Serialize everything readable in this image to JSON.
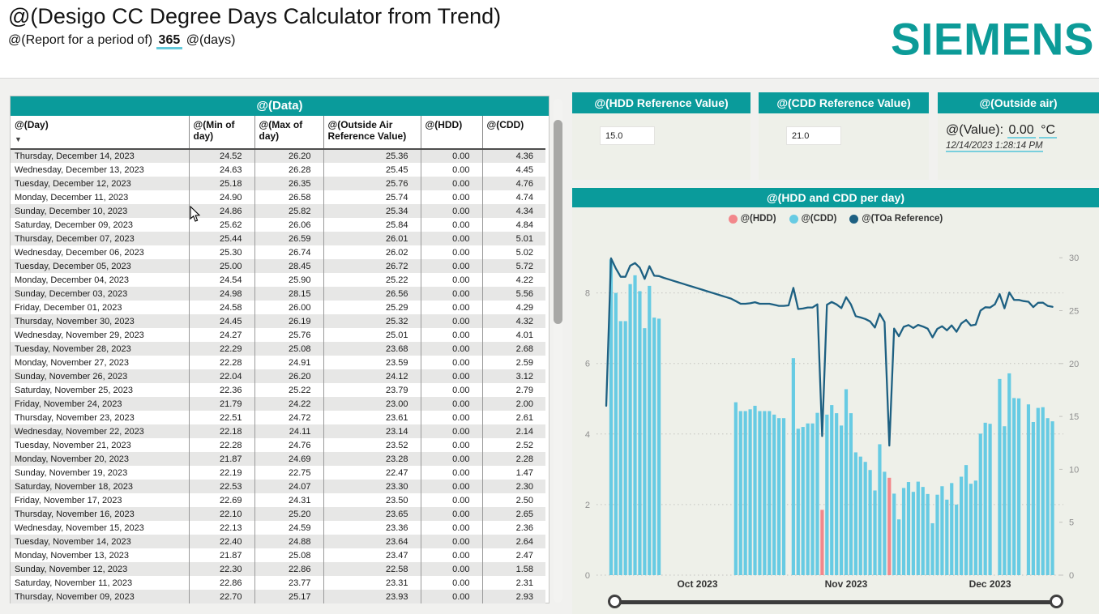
{
  "header": {
    "title": "@(Desigo CC Degree Days Calculator from Trend)",
    "subtitle_prefix": "@(Report for a period of)",
    "period_value": "365",
    "subtitle_suffix": "@(days)",
    "logo_text": "SIEMENS",
    "brand_color": "#0c9b98"
  },
  "table": {
    "title": "@(Data)",
    "sort_icon": "▼",
    "columns": [
      "@(Day)",
      "@(Min of day)",
      "@(Max of day)",
      "@(Outside Air Reference Value)",
      "@(HDD)",
      "@(CDD)"
    ],
    "rows": [
      [
        "Thursday, December 14, 2023",
        "24.52",
        "26.20",
        "25.36",
        "0.00",
        "4.36"
      ],
      [
        "Wednesday, December 13, 2023",
        "24.63",
        "26.28",
        "25.45",
        "0.00",
        "4.45"
      ],
      [
        "Tuesday, December 12, 2023",
        "25.18",
        "26.35",
        "25.76",
        "0.00",
        "4.76"
      ],
      [
        "Monday, December 11, 2023",
        "24.90",
        "26.58",
        "25.74",
        "0.00",
        "4.74"
      ],
      [
        "Sunday, December 10, 2023",
        "24.86",
        "25.82",
        "25.34",
        "0.00",
        "4.34"
      ],
      [
        "Saturday, December 09, 2023",
        "25.62",
        "26.06",
        "25.84",
        "0.00",
        "4.84"
      ],
      [
        "Thursday, December 07, 2023",
        "25.44",
        "26.59",
        "26.01",
        "0.00",
        "5.01"
      ],
      [
        "Wednesday, December 06, 2023",
        "25.30",
        "26.74",
        "26.02",
        "0.00",
        "5.02"
      ],
      [
        "Tuesday, December 05, 2023",
        "25.00",
        "28.45",
        "26.72",
        "0.00",
        "5.72"
      ],
      [
        "Monday, December 04, 2023",
        "24.54",
        "25.90",
        "25.22",
        "0.00",
        "4.22"
      ],
      [
        "Sunday, December 03, 2023",
        "24.98",
        "28.15",
        "26.56",
        "0.00",
        "5.56"
      ],
      [
        "Friday, December 01, 2023",
        "24.58",
        "26.00",
        "25.29",
        "0.00",
        "4.29"
      ],
      [
        "Thursday, November 30, 2023",
        "24.45",
        "26.19",
        "25.32",
        "0.00",
        "4.32"
      ],
      [
        "Wednesday, November 29, 2023",
        "24.27",
        "25.76",
        "25.01",
        "0.00",
        "4.01"
      ],
      [
        "Tuesday, November 28, 2023",
        "22.29",
        "25.08",
        "23.68",
        "0.00",
        "2.68"
      ],
      [
        "Monday, November 27, 2023",
        "22.28",
        "24.91",
        "23.59",
        "0.00",
        "2.59"
      ],
      [
        "Sunday, November 26, 2023",
        "22.04",
        "26.20",
        "24.12",
        "0.00",
        "3.12"
      ],
      [
        "Saturday, November 25, 2023",
        "22.36",
        "25.22",
        "23.79",
        "0.00",
        "2.79"
      ],
      [
        "Friday, November 24, 2023",
        "21.79",
        "24.22",
        "23.00",
        "0.00",
        "2.00"
      ],
      [
        "Thursday, November 23, 2023",
        "22.51",
        "24.72",
        "23.61",
        "0.00",
        "2.61"
      ],
      [
        "Wednesday, November 22, 2023",
        "22.18",
        "24.11",
        "23.14",
        "0.00",
        "2.14"
      ],
      [
        "Tuesday, November 21, 2023",
        "22.28",
        "24.76",
        "23.52",
        "0.00",
        "2.52"
      ],
      [
        "Monday, November 20, 2023",
        "21.87",
        "24.69",
        "23.28",
        "0.00",
        "2.28"
      ],
      [
        "Sunday, November 19, 2023",
        "22.19",
        "22.75",
        "22.47",
        "0.00",
        "1.47"
      ],
      [
        "Saturday, November 18, 2023",
        "22.53",
        "24.07",
        "23.30",
        "0.00",
        "2.30"
      ],
      [
        "Friday, November 17, 2023",
        "22.69",
        "24.31",
        "23.50",
        "0.00",
        "2.50"
      ],
      [
        "Thursday, November 16, 2023",
        "22.10",
        "25.20",
        "23.65",
        "0.00",
        "2.65"
      ],
      [
        "Wednesday, November 15, 2023",
        "22.13",
        "24.59",
        "23.36",
        "0.00",
        "2.36"
      ],
      [
        "Tuesday, November 14, 2023",
        "22.40",
        "24.88",
        "23.64",
        "0.00",
        "2.64"
      ],
      [
        "Monday, November 13, 2023",
        "21.87",
        "25.08",
        "23.47",
        "0.00",
        "2.47"
      ],
      [
        "Sunday, November 12, 2023",
        "22.30",
        "22.86",
        "22.58",
        "0.00",
        "1.58"
      ],
      [
        "Saturday, November 11, 2023",
        "22.86",
        "23.77",
        "23.31",
        "0.00",
        "2.31"
      ],
      [
        "Thursday, November 09, 2023",
        "22.70",
        "25.17",
        "23.93",
        "0.00",
        "2.93"
      ]
    ]
  },
  "panels": {
    "hdd": {
      "title": "@(HDD Reference Value)",
      "value": "15.0"
    },
    "cdd": {
      "title": "@(CDD Reference Value)",
      "value": "21.0"
    },
    "outside": {
      "title": "@(Outside air)",
      "value_label": "@(Value):",
      "value": "0.00",
      "unit": "°C",
      "timestamp": "12/14/2023 1:28:14 PM"
    }
  },
  "chart_data": {
    "type": "bar",
    "subtype": "dual-axis bars + line",
    "title": "@(HDD and CDD per day)",
    "legend": [
      {
        "name": "@(HDD)",
        "color": "#f2878b",
        "kind": "bar"
      },
      {
        "name": "@(CDD)",
        "color": "#67cbe3",
        "kind": "bar"
      },
      {
        "name": "@(TOa Reference)",
        "color": "#1d6082",
        "kind": "line"
      }
    ],
    "left_axis": {
      "ticks": [
        0,
        2,
        4,
        6,
        8
      ],
      "range": [
        0,
        9.3
      ],
      "applies_to": "HDD / CDD bars"
    },
    "right_axis": {
      "ticks": [
        0,
        5,
        10,
        15,
        20,
        25,
        30
      ],
      "range": [
        0,
        31.2
      ],
      "applies_to": "TOa Reference line"
    },
    "x_labels": [
      {
        "label": "Oct 2023",
        "day_index": 19
      },
      {
        "label": "Nov 2023",
        "day_index": 50
      },
      {
        "label": "Dec 2023",
        "day_index": 80
      }
    ],
    "grid": "dotted horizontal at left-axis ticks",
    "legend_position": "top-center",
    "day_fields": [
      "date",
      "toa",
      "cdd",
      "hdd"
    ],
    "days": [
      [
        "2023-09-12",
        16.0,
        null,
        null
      ],
      [
        "2023-09-13",
        29.95,
        8.95,
        null
      ],
      [
        "2023-09-14",
        29.0,
        8.0,
        null
      ],
      [
        "2023-09-15",
        28.2,
        7.2,
        null
      ],
      [
        "2023-09-16",
        28.2,
        7.2,
        null
      ],
      [
        "2023-09-17",
        29.25,
        8.25,
        null
      ],
      [
        "2023-09-18",
        29.5,
        8.5,
        null
      ],
      [
        "2023-09-19",
        29.05,
        8.05,
        null
      ],
      [
        "2023-09-20",
        28.0,
        7.0,
        null
      ],
      [
        "2023-09-21",
        29.2,
        8.2,
        null
      ],
      [
        "2023-09-22",
        28.3,
        7.3,
        null
      ],
      [
        "2023-09-23",
        28.27,
        7.27,
        null
      ],
      [
        "2023-09-24",
        28.1,
        null,
        null
      ],
      [
        "2023-09-25",
        27.96,
        null,
        null
      ],
      [
        "2023-09-26",
        27.82,
        null,
        null
      ],
      [
        "2023-09-27",
        27.68,
        null,
        null
      ],
      [
        "2023-09-28",
        27.54,
        null,
        null
      ],
      [
        "2023-09-29",
        27.4,
        null,
        null
      ],
      [
        "2023-09-30",
        27.26,
        null,
        null
      ],
      [
        "2023-10-01",
        27.12,
        null,
        null
      ],
      [
        "2023-10-02",
        26.98,
        null,
        null
      ],
      [
        "2023-10-03",
        26.84,
        null,
        null
      ],
      [
        "2023-10-04",
        26.7,
        null,
        null
      ],
      [
        "2023-10-05",
        26.56,
        null,
        null
      ],
      [
        "2023-10-06",
        26.42,
        null,
        null
      ],
      [
        "2023-10-07",
        26.28,
        null,
        null
      ],
      [
        "2023-10-08",
        26.14,
        null,
        null
      ],
      [
        "2023-10-09",
        25.9,
        4.9,
        null
      ],
      [
        "2023-10-10",
        25.65,
        4.65,
        null
      ],
      [
        "2023-10-11",
        25.65,
        4.65,
        null
      ],
      [
        "2023-10-12",
        25.7,
        4.7,
        null
      ],
      [
        "2023-10-13",
        25.8,
        4.8,
        null
      ],
      [
        "2023-10-14",
        25.65,
        4.65,
        null
      ],
      [
        "2023-10-15",
        25.65,
        4.65,
        null
      ],
      [
        "2023-10-16",
        25.65,
        4.65,
        null
      ],
      [
        "2023-10-17",
        25.55,
        4.55,
        null
      ],
      [
        "2023-10-18",
        25.45,
        4.45,
        null
      ],
      [
        "2023-10-19",
        25.45,
        4.45,
        null
      ],
      [
        "2023-10-20",
        25.5,
        null,
        null
      ],
      [
        "2023-10-21",
        27.15,
        6.15,
        null
      ],
      [
        "2023-10-22",
        25.15,
        4.15,
        null
      ],
      [
        "2023-10-23",
        25.2,
        4.2,
        null
      ],
      [
        "2023-10-24",
        25.3,
        4.3,
        null
      ],
      [
        "2023-10-25",
        25.3,
        4.3,
        null
      ],
      [
        "2023-10-26",
        25.6,
        4.6,
        null
      ],
      [
        "2023-10-27",
        13.15,
        null,
        1.85
      ],
      [
        "2023-10-28",
        25.55,
        4.55,
        null
      ],
      [
        "2023-10-29",
        25.82,
        4.82,
        null
      ],
      [
        "2023-10-30",
        25.59,
        4.59,
        null
      ],
      [
        "2023-10-31",
        25.24,
        4.24,
        null
      ],
      [
        "2023-11-01",
        26.27,
        5.27,
        null
      ],
      [
        "2023-11-02",
        25.59,
        4.59,
        null
      ],
      [
        "2023-11-03",
        24.48,
        3.48,
        null
      ],
      [
        "2023-11-04",
        24.36,
        3.36,
        null
      ],
      [
        "2023-11-05",
        24.21,
        3.21,
        null
      ],
      [
        "2023-11-06",
        23.98,
        2.98,
        null
      ],
      [
        "2023-11-07",
        23.4,
        2.4,
        null
      ],
      [
        "2023-11-08",
        24.71,
        3.71,
        null
      ],
      [
        "2023-11-09",
        23.93,
        2.93,
        null
      ],
      [
        "2023-11-10",
        12.24,
        null,
        2.76
      ],
      [
        "2023-11-11",
        23.31,
        2.31,
        null
      ],
      [
        "2023-11-12",
        22.58,
        1.58,
        null
      ],
      [
        "2023-11-13",
        23.47,
        2.47,
        null
      ],
      [
        "2023-11-14",
        23.64,
        2.64,
        null
      ],
      [
        "2023-11-15",
        23.36,
        2.36,
        null
      ],
      [
        "2023-11-16",
        23.65,
        2.65,
        null
      ],
      [
        "2023-11-17",
        23.5,
        2.5,
        null
      ],
      [
        "2023-11-18",
        23.3,
        2.3,
        null
      ],
      [
        "2023-11-19",
        22.47,
        1.47,
        null
      ],
      [
        "2023-11-20",
        23.28,
        2.28,
        null
      ],
      [
        "2023-11-21",
        23.52,
        2.52,
        null
      ],
      [
        "2023-11-22",
        23.14,
        2.14,
        null
      ],
      [
        "2023-11-23",
        23.61,
        2.61,
        null
      ],
      [
        "2023-11-24",
        23.0,
        2.0,
        null
      ],
      [
        "2023-11-25",
        23.79,
        2.79,
        null
      ],
      [
        "2023-11-26",
        24.12,
        3.12,
        null
      ],
      [
        "2023-11-27",
        23.59,
        2.59,
        null
      ],
      [
        "2023-11-28",
        23.68,
        2.68,
        null
      ],
      [
        "2023-11-29",
        25.01,
        4.01,
        null
      ],
      [
        "2023-11-30",
        25.32,
        4.32,
        null
      ],
      [
        "2023-12-01",
        25.29,
        4.29,
        null
      ],
      [
        "2023-12-02",
        25.6,
        null,
        null
      ],
      [
        "2023-12-03",
        26.56,
        5.56,
        null
      ],
      [
        "2023-12-04",
        25.22,
        4.22,
        null
      ],
      [
        "2023-12-05",
        26.72,
        5.72,
        null
      ],
      [
        "2023-12-06",
        26.02,
        5.02,
        null
      ],
      [
        "2023-12-07",
        26.01,
        5.01,
        null
      ],
      [
        "2023-12-08",
        25.9,
        null,
        null
      ],
      [
        "2023-12-09",
        25.84,
        4.84,
        null
      ],
      [
        "2023-12-10",
        25.34,
        4.34,
        null
      ],
      [
        "2023-12-11",
        25.74,
        4.74,
        null
      ],
      [
        "2023-12-12",
        25.76,
        4.76,
        null
      ],
      [
        "2023-12-13",
        25.45,
        4.45,
        null
      ],
      [
        "2023-12-14",
        25.36,
        4.36,
        null
      ]
    ],
    "colors": {
      "cdd_bar": "#67cbe3",
      "hdd_bar": "#f2878b",
      "toa_line": "#1d6082",
      "grid": "#c2c2be",
      "axis_text": "#8f8f8f",
      "month_text": "#333333"
    }
  }
}
